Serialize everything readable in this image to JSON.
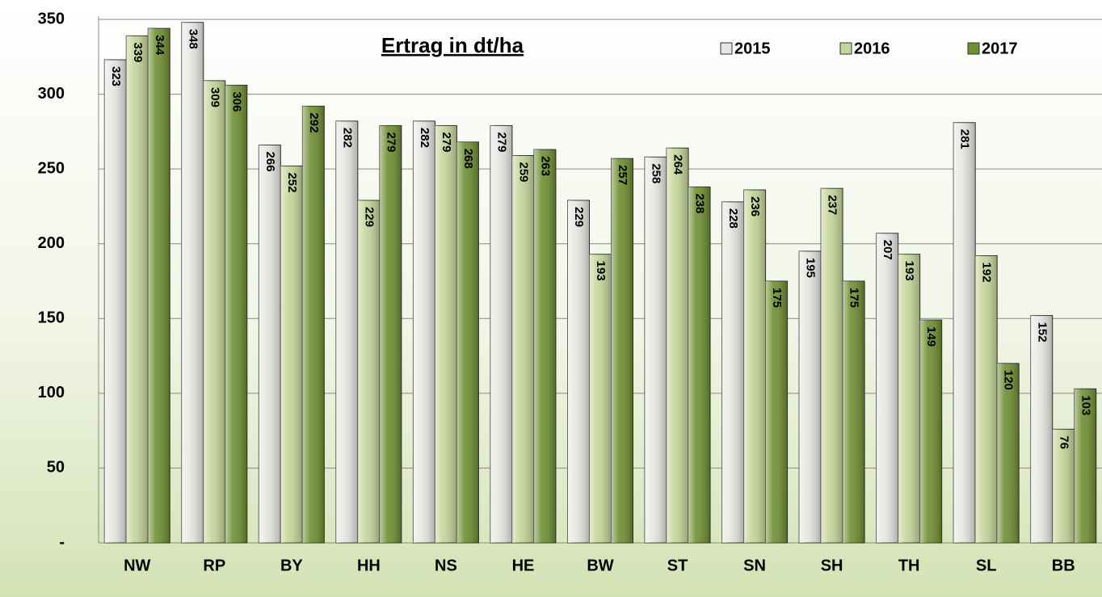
{
  "chart_data": {
    "type": "bar",
    "title": "Ertrag in dt/ha",
    "categories": [
      "NW",
      "RP",
      "BY",
      "HH",
      "NS",
      "HE",
      "BW",
      "ST",
      "SN",
      "SH",
      "TH",
      "SL",
      "BB"
    ],
    "series": [
      {
        "name": "2015",
        "color": "#e6e6e2",
        "values": [
          323,
          348,
          266,
          282,
          282,
          279,
          229,
          258,
          228,
          195,
          207,
          281,
          152
        ]
      },
      {
        "name": "2016",
        "color": "#c5d69a",
        "values": [
          339,
          309,
          252,
          229,
          279,
          259,
          193,
          264,
          236,
          237,
          193,
          192,
          76
        ]
      },
      {
        "name": "2017",
        "color": "#6e8f32",
        "values": [
          344,
          306,
          292,
          279,
          268,
          263,
          257,
          238,
          175,
          175,
          149,
          120,
          103
        ]
      }
    ],
    "ylim": [
      0,
      350
    ],
    "yticks": [
      {
        "value": 0,
        "label": "-"
      },
      50,
      100,
      150,
      200,
      250,
      300,
      350
    ],
    "grid": true,
    "legend": "top-right"
  }
}
